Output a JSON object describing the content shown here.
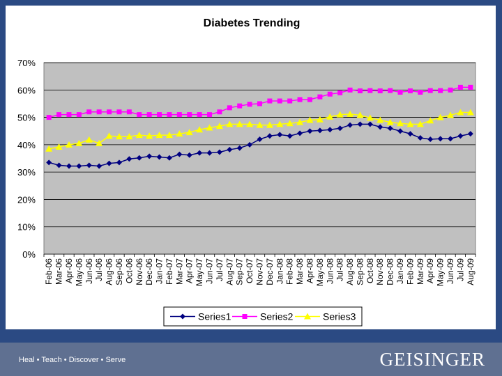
{
  "footer": {
    "tagline": "Heal • Teach • Discover • Serve",
    "brand": "GEISINGER"
  },
  "colors": {
    "background": "#2b4a83",
    "footer": "#5f7091",
    "plot_area": "#c0c0c0",
    "series1": "#000080",
    "series2": "#ff00ff",
    "series3": "#ffff00"
  },
  "chart_data": {
    "type": "line",
    "title": "Diabetes Trending",
    "xlabel": "",
    "ylabel": "",
    "ylim": [
      0,
      0.7
    ],
    "yticks": [
      "0%",
      "10%",
      "20%",
      "30%",
      "40%",
      "50%",
      "60%",
      "70%"
    ],
    "grid": true,
    "legend": "bottom",
    "categories": [
      "Feb-06",
      "Mar-06",
      "Apr-06",
      "May-06",
      "Jun-06",
      "Jul-06",
      "Aug-06",
      "Sep-06",
      "Oct-06",
      "Nov-06",
      "Dec-06",
      "Jan-07",
      "Feb-07",
      "Mar-07",
      "Apr-07",
      "May-07",
      "Jun-07",
      "Jul-07",
      "Aug-07",
      "Sep-07",
      "Oct-07",
      "Nov-07",
      "Dec-07",
      "Jan-08",
      "Feb-08",
      "Mar-08",
      "Apr-08",
      "May-08",
      "Jun-08",
      "Jul-08",
      "Aug-08",
      "Sep-08",
      "Oct-08",
      "Nov-08",
      "Dec-08",
      "Jan-09",
      "Feb-09",
      "Mar-09",
      "Apr-09",
      "May-09",
      "Jun-09",
      "Jul-09",
      "Aug-09"
    ],
    "series": [
      {
        "name": "Series1",
        "marker": "diamond",
        "values": [
          0.335,
          0.325,
          0.322,
          0.322,
          0.325,
          0.322,
          0.332,
          0.335,
          0.348,
          0.352,
          0.358,
          0.355,
          0.352,
          0.365,
          0.362,
          0.37,
          0.37,
          0.373,
          0.382,
          0.388,
          0.4,
          0.42,
          0.432,
          0.437,
          0.432,
          0.442,
          0.45,
          0.452,
          0.455,
          0.46,
          0.472,
          0.475,
          0.475,
          0.465,
          0.46,
          0.45,
          0.44,
          0.425,
          0.42,
          0.422,
          0.422,
          0.432,
          0.44
        ]
      },
      {
        "name": "Series2",
        "marker": "square",
        "values": [
          0.5,
          0.51,
          0.51,
          0.51,
          0.52,
          0.52,
          0.52,
          0.52,
          0.52,
          0.51,
          0.51,
          0.51,
          0.51,
          0.51,
          0.51,
          0.51,
          0.51,
          0.52,
          0.535,
          0.542,
          0.548,
          0.55,
          0.56,
          0.56,
          0.56,
          0.565,
          0.565,
          0.575,
          0.585,
          0.59,
          0.6,
          0.597,
          0.598,
          0.597,
          0.598,
          0.592,
          0.597,
          0.592,
          0.598,
          0.598,
          0.6,
          0.61,
          0.61
        ]
      },
      {
        "name": "Series3",
        "marker": "triangle",
        "values": [
          0.385,
          0.392,
          0.4,
          0.405,
          0.418,
          0.405,
          0.432,
          0.43,
          0.43,
          0.435,
          0.432,
          0.435,
          0.435,
          0.44,
          0.445,
          0.455,
          0.462,
          0.468,
          0.475,
          0.475,
          0.475,
          0.472,
          0.472,
          0.475,
          0.478,
          0.482,
          0.49,
          0.492,
          0.502,
          0.51,
          0.512,
          0.508,
          0.498,
          0.49,
          0.482,
          0.478,
          0.475,
          0.475,
          0.488,
          0.5,
          0.508,
          0.518,
          0.518
        ]
      }
    ]
  }
}
